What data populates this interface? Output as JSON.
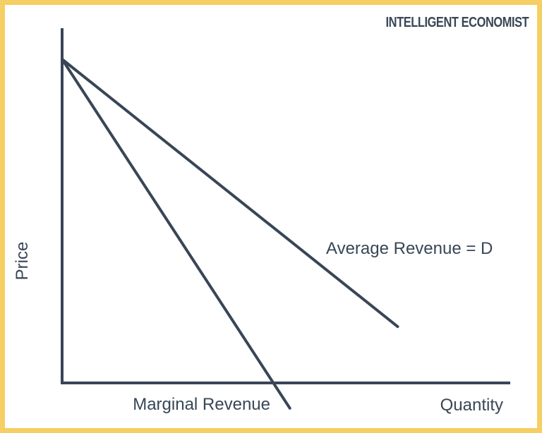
{
  "brand": {
    "text": "INTELLIGENT ECONOMIST",
    "color": "#384656"
  },
  "colors": {
    "border": "#f5cf63",
    "line": "#384656",
    "text": "#384656",
    "background": "#ffffff"
  },
  "chart_data": {
    "type": "line",
    "title": "",
    "xlabel": "Quantity",
    "ylabel": "Price",
    "xlim": [
      0,
      100
    ],
    "ylim": [
      0,
      100
    ],
    "ticks": false,
    "grid": false,
    "legend": "none",
    "series": [
      {
        "name": "Average Revenue = D",
        "x": [
          0,
          75.6
        ],
        "y": [
          100,
          17.4
        ]
      },
      {
        "name": "Marginal Revenue",
        "x": [
          0,
          51.3
        ],
        "y": [
          100,
          -7.8
        ]
      }
    ]
  }
}
